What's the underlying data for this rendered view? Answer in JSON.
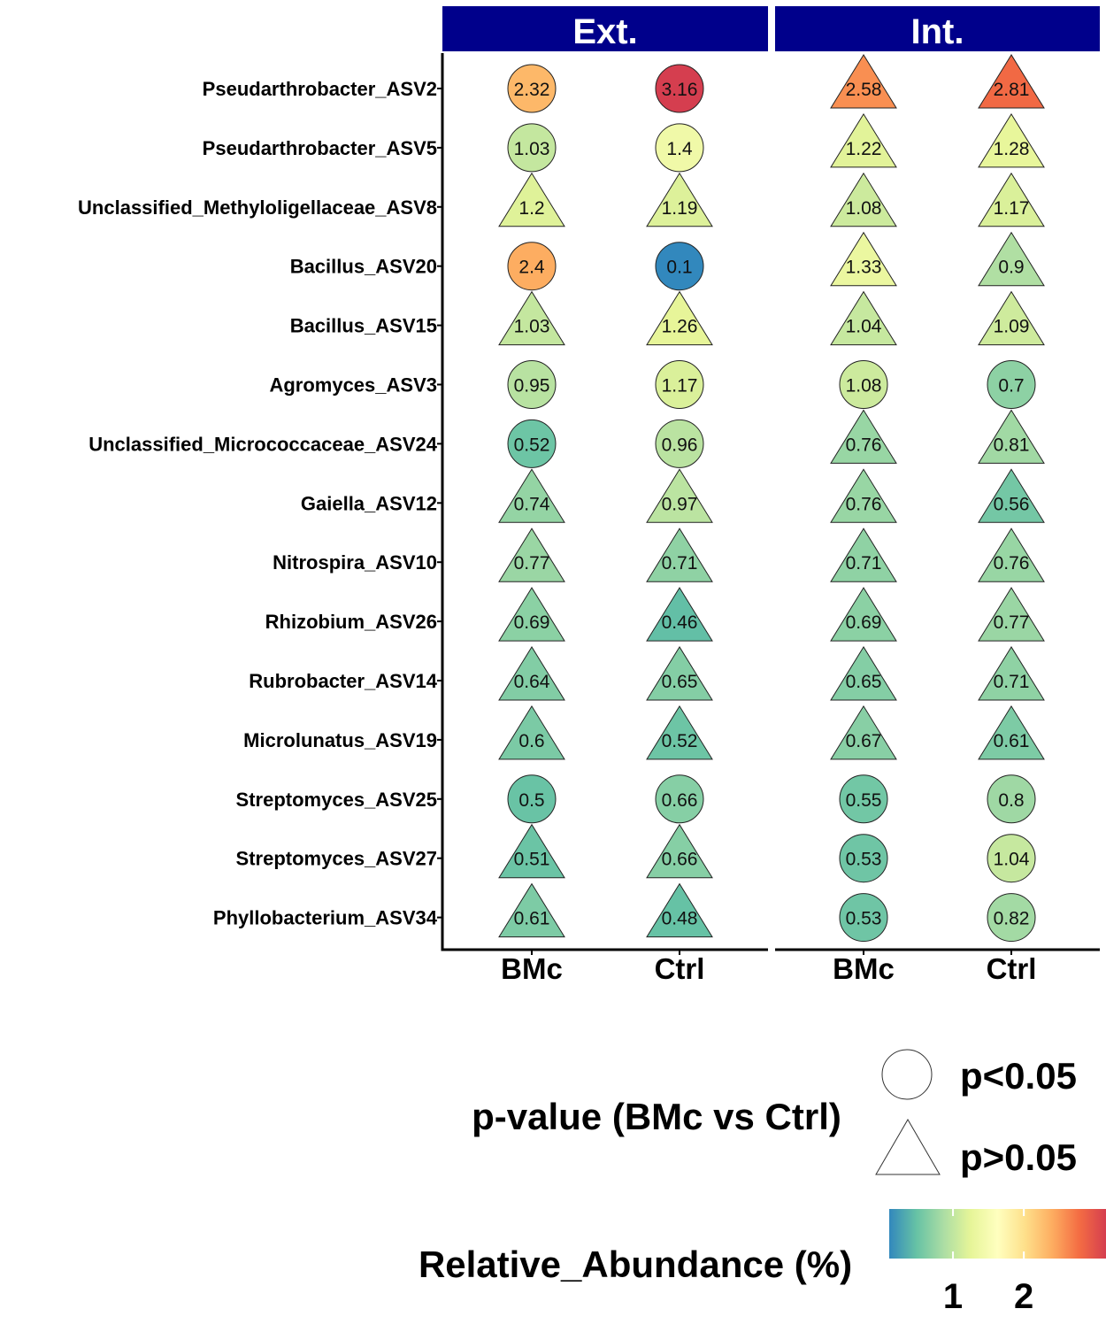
{
  "chart_data": {
    "type": "scatter",
    "panels": [
      "Ext.",
      "Int."
    ],
    "x_categories": [
      "BMc",
      "Ctrl"
    ],
    "rows": [
      "Pseudarthrobacter_ASV2",
      "Pseudarthrobacter_ASV5",
      "Unclassified_Methyloligellaceae_ASV8",
      "Bacillus_ASV20",
      "Bacillus_ASV15",
      "Agromyces_ASV3",
      "Unclassified_Micrococcaceae_ASV24",
      "Gaiella_ASV12",
      "Nitrospira_ASV10",
      "Rhizobium_ASV26",
      "Rubrobacter_ASV14",
      "Microlunatus_ASV19",
      "Streptomyces_ASV25",
      "Streptomyces_ASV27",
      "Phyllobacterium_ASV34"
    ],
    "values": {
      "Ext.": {
        "BMc": [
          2.32,
          1.03,
          1.2,
          2.4,
          1.03,
          0.95,
          0.52,
          0.74,
          0.77,
          0.69,
          0.64,
          0.6,
          0.5,
          0.51,
          0.61
        ],
        "Ctrl": [
          3.16,
          1.4,
          1.19,
          0.1,
          1.26,
          1.17,
          0.96,
          0.97,
          0.71,
          0.46,
          0.65,
          0.52,
          0.66,
          0.66,
          0.48
        ]
      },
      "Int.": {
        "BMc": [
          2.58,
          1.22,
          1.08,
          1.33,
          1.04,
          1.08,
          0.76,
          0.76,
          0.71,
          0.69,
          0.65,
          0.67,
          0.55,
          0.53,
          0.53
        ],
        "Ctrl": [
          2.81,
          1.28,
          1.17,
          0.9,
          1.09,
          0.7,
          0.81,
          0.56,
          0.76,
          0.77,
          0.71,
          0.61,
          0.8,
          1.04,
          0.82
        ]
      }
    },
    "significant_rows": {
      "Ext.": [
        0,
        1,
        3,
        5,
        6,
        12
      ],
      "Int.": [
        5,
        12,
        13,
        14
      ]
    },
    "shape_legend": {
      "title": "p-value (BMc vs Ctrl)",
      "items": [
        {
          "shape": "circle",
          "label": "p<0.05"
        },
        {
          "shape": "triangle",
          "label": "p>0.05"
        }
      ]
    },
    "color_legend": {
      "title": "Relative_Abundance (%)",
      "ticks": [
        1,
        2
      ],
      "range": [
        0.1,
        3.16
      ],
      "palette": [
        "#3288bd",
        "#66c2a5",
        "#abdda4",
        "#e6f598",
        "#ffffbf",
        "#fee08b",
        "#fdae61",
        "#f46d43",
        "#d53e4f"
      ]
    },
    "colors": {
      "strip_fill": "#00008b",
      "strip_text": "#ffffff",
      "axis": "#000000"
    }
  }
}
